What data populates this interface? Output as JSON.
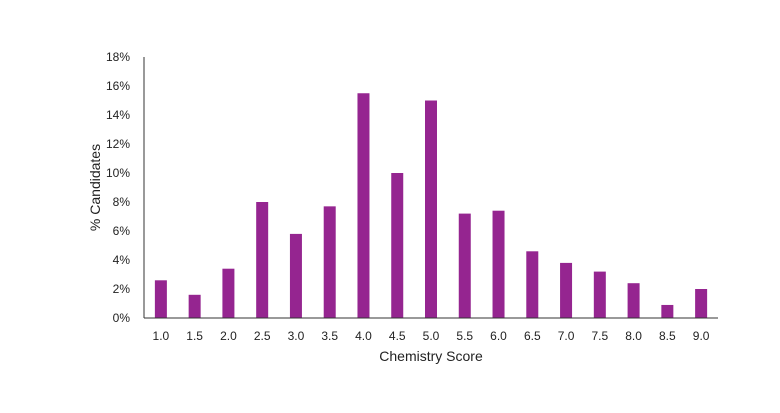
{
  "chart_data": {
    "type": "bar",
    "categories": [
      "1.0",
      "1.5",
      "2.0",
      "2.5",
      "3.0",
      "3.5",
      "4.0",
      "4.5",
      "5.0",
      "5.5",
      "6.0",
      "6.5",
      "7.0",
      "7.5",
      "8.0",
      "8.5",
      "9.0"
    ],
    "values": [
      2.6,
      1.6,
      3.4,
      8.0,
      5.8,
      7.7,
      15.5,
      10.0,
      15.0,
      7.2,
      7.4,
      4.6,
      3.8,
      3.2,
      2.4,
      0.9,
      2.0
    ],
    "xlabel": "Chemistry Score",
    "ylabel": "% Candidates",
    "ylim": [
      0,
      18
    ],
    "yticks": [
      0,
      2,
      4,
      6,
      8,
      10,
      12,
      14,
      16,
      18
    ],
    "ytick_labels": [
      "0%",
      "2%",
      "4%",
      "6%",
      "8%",
      "10%",
      "12%",
      "14%",
      "16%",
      "18%"
    ],
    "grid": false,
    "legend": "none",
    "bar_color": "#952590",
    "axis_color": "#333333"
  }
}
